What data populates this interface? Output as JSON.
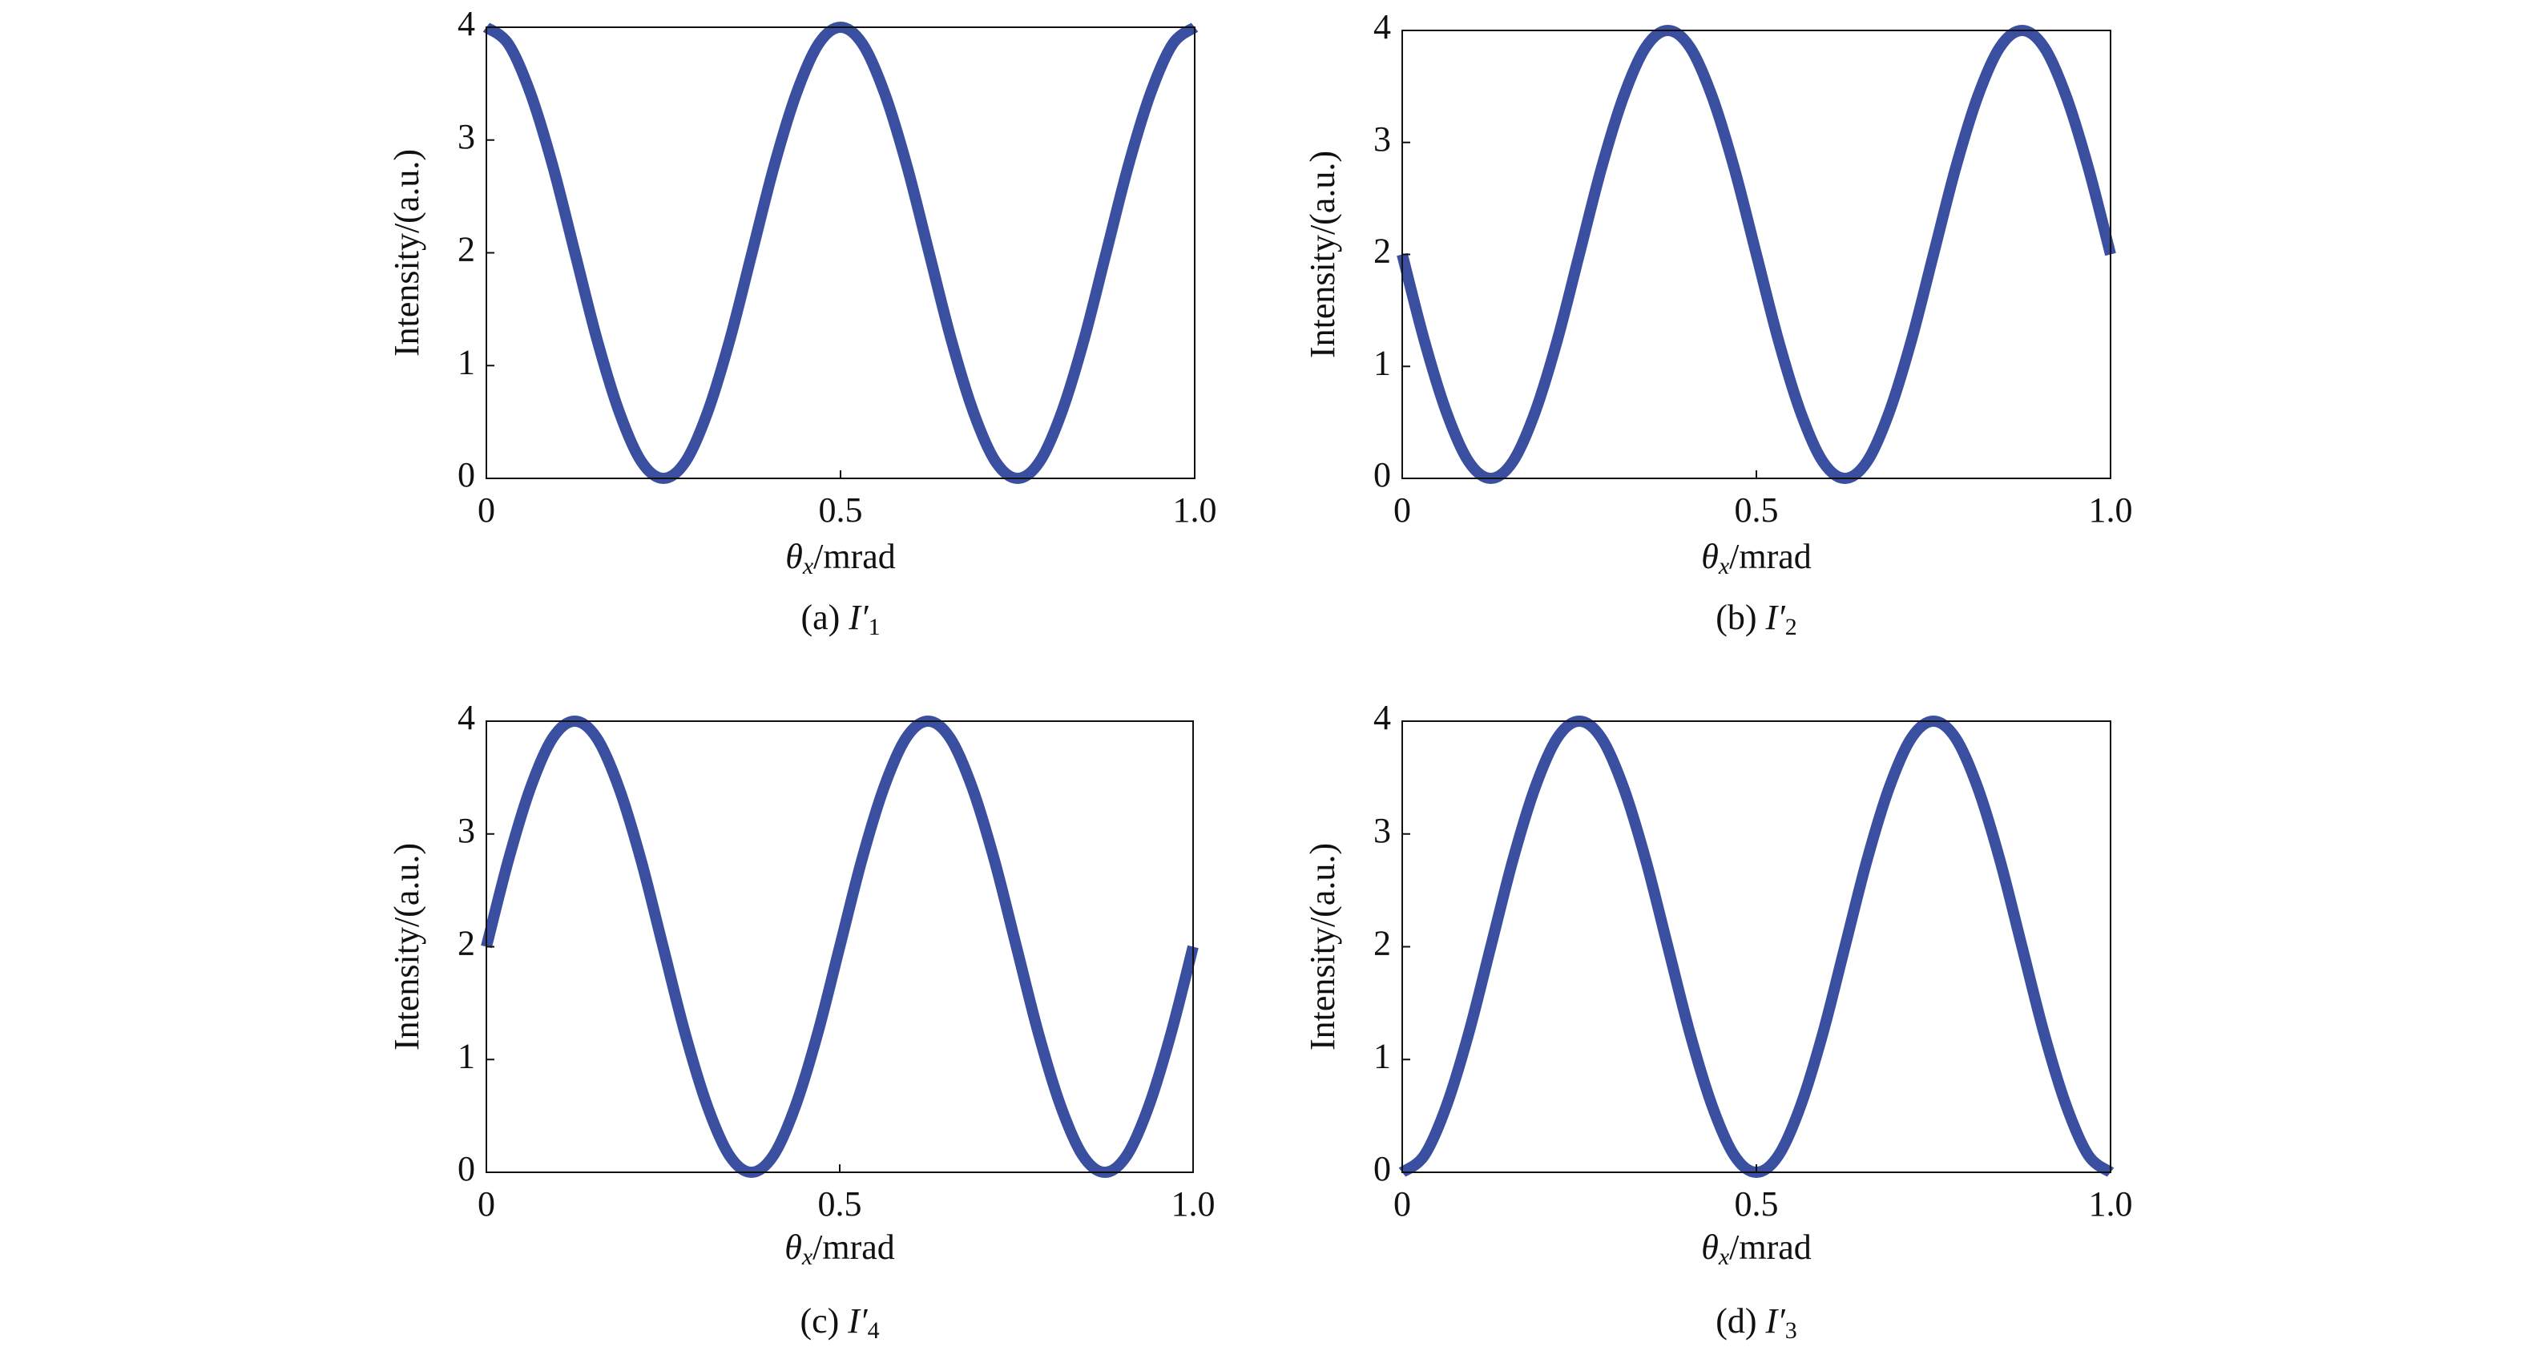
{
  "chart_data": [
    {
      "type": "line",
      "caption": {
        "label": "(a)",
        "symbol": "I′",
        "subscript": "1"
      },
      "xlabel": {
        "symbol": "θ",
        "subscript": "x",
        "unit": "/mrad"
      },
      "ylabel": "Intensity/(a.u.)",
      "x": [
        0,
        0.03125,
        0.0625,
        0.09375,
        0.125,
        0.15625,
        0.1875,
        0.21875,
        0.25,
        0.28125,
        0.3125,
        0.34375,
        0.375,
        0.40625,
        0.4375,
        0.46875,
        0.5,
        0.53125,
        0.5625,
        0.59375,
        0.625,
        0.65625,
        0.6875,
        0.71875,
        0.75,
        0.78125,
        0.8125,
        0.84375,
        0.875,
        0.90625,
        0.9375,
        0.96875,
        1
      ],
      "series": [
        {
          "color": "#3a4f9f",
          "values": [
            4,
            3.85,
            3.41,
            2.77,
            2,
            1.23,
            0.59,
            0.15,
            0,
            0.15,
            0.59,
            1.23,
            2,
            2.77,
            3.41,
            3.85,
            4,
            3.85,
            3.41,
            2.77,
            2,
            1.23,
            0.59,
            0.15,
            0,
            0.15,
            0.59,
            1.23,
            2,
            2.77,
            3.41,
            3.85,
            4
          ]
        }
      ],
      "xlim": [
        0,
        1
      ],
      "xticks": [
        0,
        0.5,
        {
          "value": 1,
          "label": "1.0"
        }
      ],
      "ylim": [
        0,
        4
      ],
      "yticks": [
        0,
        1,
        2,
        3,
        4
      ]
    },
    {
      "type": "line",
      "caption": {
        "label": "(b)",
        "symbol": "I′",
        "subscript": "2"
      },
      "xlabel": {
        "symbol": "θ",
        "subscript": "x",
        "unit": "/mrad"
      },
      "ylabel": "Intensity/(a.u.)",
      "x": [
        0,
        0.03125,
        0.0625,
        0.09375,
        0.125,
        0.15625,
        0.1875,
        0.21875,
        0.25,
        0.28125,
        0.3125,
        0.34375,
        0.375,
        0.40625,
        0.4375,
        0.46875,
        0.5,
        0.53125,
        0.5625,
        0.59375,
        0.625,
        0.65625,
        0.6875,
        0.71875,
        0.75,
        0.78125,
        0.8125,
        0.84375,
        0.875,
        0.90625,
        0.9375,
        0.96875,
        1
      ],
      "series": [
        {
          "color": "#3a4f9f",
          "values": [
            2,
            1.23,
            0.59,
            0.15,
            0,
            0.15,
            0.59,
            1.23,
            2,
            2.77,
            3.41,
            3.85,
            4,
            3.85,
            3.41,
            2.77,
            2,
            1.23,
            0.59,
            0.15,
            0,
            0.15,
            0.59,
            1.23,
            2,
            2.77,
            3.41,
            3.85,
            4,
            3.85,
            3.41,
            2.77,
            2
          ]
        }
      ],
      "xlim": [
        0,
        1
      ],
      "xticks": [
        0,
        0.5,
        {
          "value": 1,
          "label": "1.0"
        }
      ],
      "ylim": [
        0,
        4
      ],
      "yticks": [
        0,
        1,
        2,
        3,
        4
      ]
    },
    {
      "type": "line",
      "caption": {
        "label": "(c)",
        "symbol": "I′",
        "subscript": "4"
      },
      "xlabel": {
        "symbol": "θ",
        "subscript": "x",
        "unit": "/mrad"
      },
      "ylabel": "Intensity/(a.u.)",
      "x": [
        0,
        0.03125,
        0.0625,
        0.09375,
        0.125,
        0.15625,
        0.1875,
        0.21875,
        0.25,
        0.28125,
        0.3125,
        0.34375,
        0.375,
        0.40625,
        0.4375,
        0.46875,
        0.5,
        0.53125,
        0.5625,
        0.59375,
        0.625,
        0.65625,
        0.6875,
        0.71875,
        0.75,
        0.78125,
        0.8125,
        0.84375,
        0.875,
        0.90625,
        0.9375,
        0.96875,
        1
      ],
      "series": [
        {
          "color": "#3a4f9f",
          "values": [
            2,
            2.77,
            3.41,
            3.85,
            4,
            3.85,
            3.41,
            2.77,
            2,
            1.23,
            0.59,
            0.15,
            0,
            0.15,
            0.59,
            1.23,
            2,
            2.77,
            3.41,
            3.85,
            4,
            3.85,
            3.41,
            2.77,
            2,
            1.23,
            0.59,
            0.15,
            0,
            0.15,
            0.59,
            1.23,
            2
          ]
        }
      ],
      "xlim": [
        0,
        1
      ],
      "xticks": [
        0,
        0.5,
        {
          "value": 1,
          "label": "1.0"
        }
      ],
      "ylim": [
        0,
        4
      ],
      "yticks": [
        0,
        1,
        2,
        3,
        4
      ]
    },
    {
      "type": "line",
      "caption": {
        "label": "(d)",
        "symbol": "I′",
        "subscript": "3"
      },
      "xlabel": {
        "symbol": "θ",
        "subscript": "x",
        "unit": "/mrad"
      },
      "ylabel": "Intensity/(a.u.)",
      "x": [
        0,
        0.03125,
        0.0625,
        0.09375,
        0.125,
        0.15625,
        0.1875,
        0.21875,
        0.25,
        0.28125,
        0.3125,
        0.34375,
        0.375,
        0.40625,
        0.4375,
        0.46875,
        0.5,
        0.53125,
        0.5625,
        0.59375,
        0.625,
        0.65625,
        0.6875,
        0.71875,
        0.75,
        0.78125,
        0.8125,
        0.84375,
        0.875,
        0.90625,
        0.9375,
        0.96875,
        1
      ],
      "series": [
        {
          "color": "#3a4f9f",
          "values": [
            0,
            0.15,
            0.59,
            1.23,
            2,
            2.77,
            3.41,
            3.85,
            4,
            3.85,
            3.41,
            2.77,
            2,
            1.23,
            0.59,
            0.15,
            0,
            0.15,
            0.59,
            1.23,
            2,
            2.77,
            3.41,
            3.85,
            4,
            3.85,
            3.41,
            2.77,
            2,
            1.23,
            0.59,
            0.15,
            0
          ]
        }
      ],
      "xlim": [
        0,
        1
      ],
      "xticks": [
        0,
        0.5,
        {
          "value": 1,
          "label": "1.0"
        }
      ],
      "ylim": [
        0,
        4
      ],
      "yticks": [
        0,
        1,
        2,
        3,
        4
      ]
    }
  ]
}
